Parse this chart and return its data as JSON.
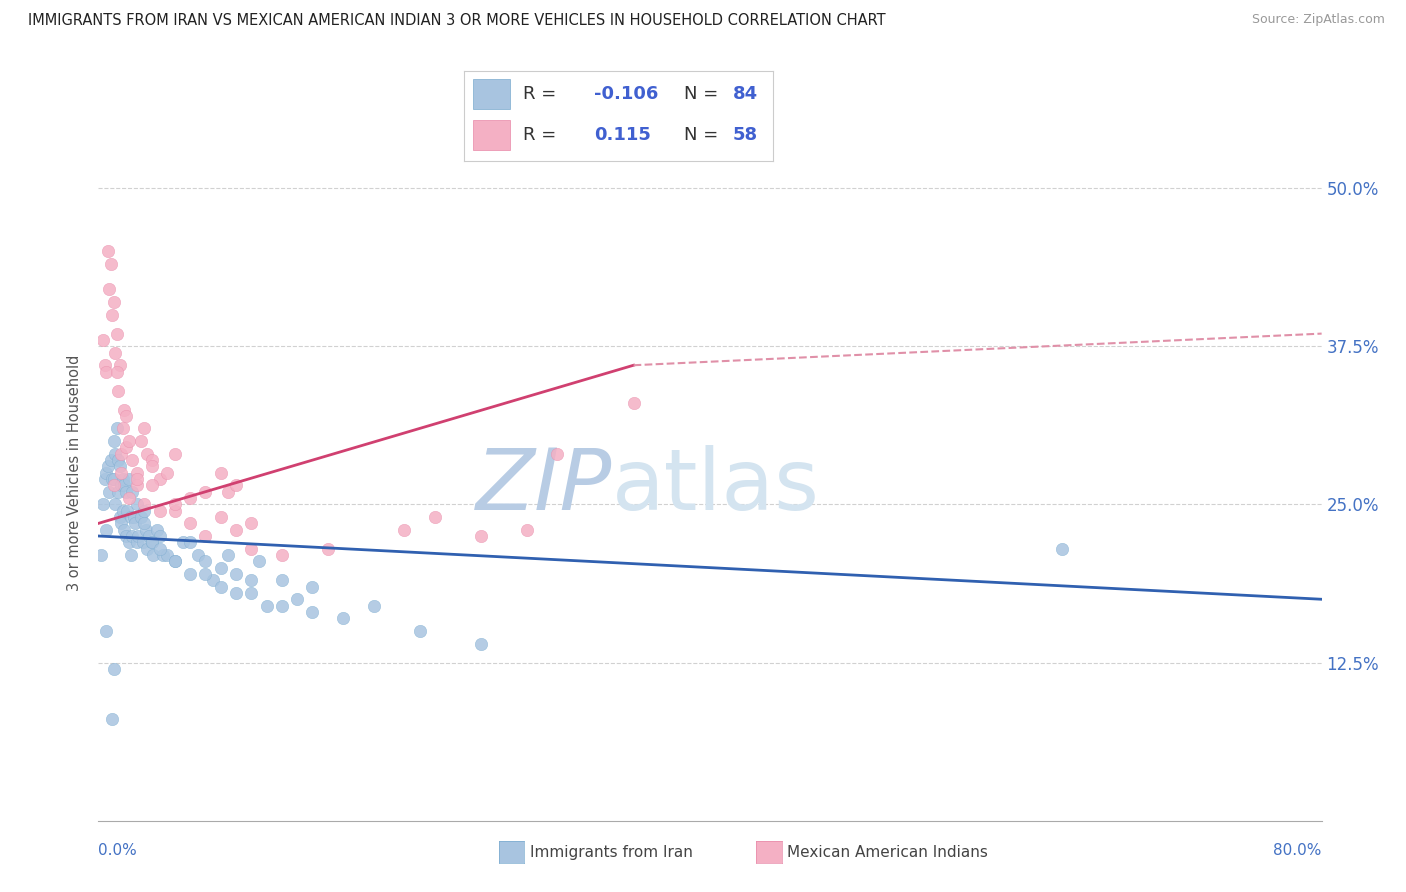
{
  "title": "IMMIGRANTS FROM IRAN VS MEXICAN AMERICAN INDIAN 3 OR MORE VEHICLES IN HOUSEHOLD CORRELATION CHART",
  "source": "Source: ZipAtlas.com",
  "ylabel": "3 or more Vehicles in Household",
  "xmin": 0.0,
  "xmax": 80.0,
  "ymin": 0.0,
  "ymax": 55.0,
  "yticks": [
    12.5,
    25.0,
    37.5,
    50.0
  ],
  "ytick_labels": [
    "12.5%",
    "25.0%",
    "37.5%",
    "50.0%"
  ],
  "series1_label": "Immigrants from Iran",
  "series1_color": "#a8c4e0",
  "series1_edge": "#7aabcf",
  "series1_R": "-0.106",
  "series1_N": "84",
  "series2_label": "Mexican American Indians",
  "series2_color": "#f4b0c4",
  "series2_edge": "#e888a8",
  "series2_R": "0.115",
  "series2_N": "58",
  "trend1_color": "#3060b0",
  "trend2_color": "#d04070",
  "trend2_dash_color": "#e090a8",
  "watermark_zip": "ZIP",
  "watermark_atlas": "atlas",
  "watermark_color": "#d0dff0",
  "background_color": "#ffffff",
  "legend_R_color": "#4060d0",
  "series1_x": [
    0.2,
    0.3,
    0.4,
    0.5,
    0.5,
    0.6,
    0.7,
    0.8,
    0.9,
    1.0,
    1.0,
    1.1,
    1.1,
    1.2,
    1.3,
    1.3,
    1.4,
    1.4,
    1.5,
    1.5,
    1.6,
    1.6,
    1.7,
    1.7,
    1.8,
    1.8,
    1.9,
    2.0,
    2.0,
    2.1,
    2.1,
    2.2,
    2.2,
    2.3,
    2.4,
    2.5,
    2.5,
    2.6,
    2.8,
    2.9,
    3.0,
    3.1,
    3.2,
    3.3,
    3.5,
    3.6,
    3.8,
    4.0,
    4.2,
    4.5,
    5.0,
    5.5,
    6.0,
    6.5,
    7.0,
    7.5,
    8.0,
    8.5,
    9.0,
    10.0,
    10.5,
    11.0,
    12.0,
    13.0,
    14.0,
    16.0,
    18.0,
    21.0,
    25.0,
    3.0,
    3.5,
    4.0,
    5.0,
    6.0,
    7.0,
    8.0,
    9.0,
    10.0,
    12.0,
    14.0,
    63.0,
    0.5,
    0.9,
    1.0
  ],
  "series1_y": [
    21.0,
    25.0,
    27.0,
    27.5,
    23.0,
    28.0,
    26.0,
    28.5,
    27.0,
    27.0,
    30.0,
    29.0,
    25.0,
    31.0,
    28.5,
    26.0,
    24.0,
    28.0,
    26.5,
    23.5,
    27.0,
    24.5,
    26.5,
    23.0,
    26.0,
    22.5,
    24.5,
    27.0,
    22.0,
    24.0,
    21.0,
    26.0,
    22.5,
    24.0,
    23.5,
    25.0,
    22.0,
    22.5,
    24.0,
    22.0,
    24.5,
    23.0,
    21.5,
    22.5,
    22.0,
    21.0,
    23.0,
    22.5,
    21.0,
    21.0,
    20.5,
    22.0,
    19.5,
    21.0,
    20.5,
    19.0,
    18.5,
    21.0,
    19.5,
    18.0,
    20.5,
    17.0,
    19.0,
    17.5,
    18.5,
    16.0,
    17.0,
    15.0,
    14.0,
    23.5,
    22.0,
    21.5,
    20.5,
    22.0,
    19.5,
    20.0,
    18.0,
    19.0,
    17.0,
    16.5,
    21.5,
    15.0,
    8.0,
    12.0
  ],
  "series2_x": [
    0.3,
    0.4,
    0.5,
    0.6,
    0.7,
    0.8,
    0.9,
    1.0,
    1.1,
    1.2,
    1.3,
    1.4,
    1.5,
    1.6,
    1.7,
    1.8,
    2.0,
    2.2,
    2.5,
    2.8,
    3.0,
    3.2,
    3.5,
    4.0,
    4.5,
    5.0,
    6.0,
    7.0,
    8.0,
    8.5,
    9.0,
    10.0,
    1.0,
    1.5,
    2.0,
    2.5,
    3.0,
    3.5,
    4.0,
    5.0,
    6.0,
    7.0,
    8.0,
    9.0,
    10.0,
    12.0,
    15.0,
    20.0,
    22.0,
    25.0,
    28.0,
    30.0,
    35.0,
    1.2,
    1.8,
    2.5,
    3.5,
    5.0
  ],
  "series2_y": [
    38.0,
    36.0,
    35.5,
    45.0,
    42.0,
    44.0,
    40.0,
    41.0,
    37.0,
    38.5,
    34.0,
    36.0,
    29.0,
    31.0,
    32.5,
    29.5,
    30.0,
    28.5,
    27.5,
    30.0,
    31.0,
    29.0,
    28.5,
    27.0,
    27.5,
    29.0,
    25.5,
    26.0,
    27.5,
    26.0,
    26.5,
    23.5,
    26.5,
    27.5,
    25.5,
    26.5,
    25.0,
    26.5,
    24.5,
    24.5,
    23.5,
    22.5,
    24.0,
    23.0,
    21.5,
    21.0,
    21.5,
    23.0,
    24.0,
    22.5,
    23.0,
    29.0,
    33.0,
    35.5,
    32.0,
    27.0,
    28.0,
    25.0
  ],
  "trend1_x0": 0.0,
  "trend1_x1": 80.0,
  "trend1_y0": 22.5,
  "trend1_y1": 17.5,
  "trend2_solid_x0": 0.0,
  "trend2_solid_x1": 35.0,
  "trend2_solid_y0": 23.5,
  "trend2_solid_y1": 36.0,
  "trend2_dash_x0": 35.0,
  "trend2_dash_x1": 80.0,
  "trend2_dash_y0": 36.0,
  "trend2_dash_y1": 38.5
}
